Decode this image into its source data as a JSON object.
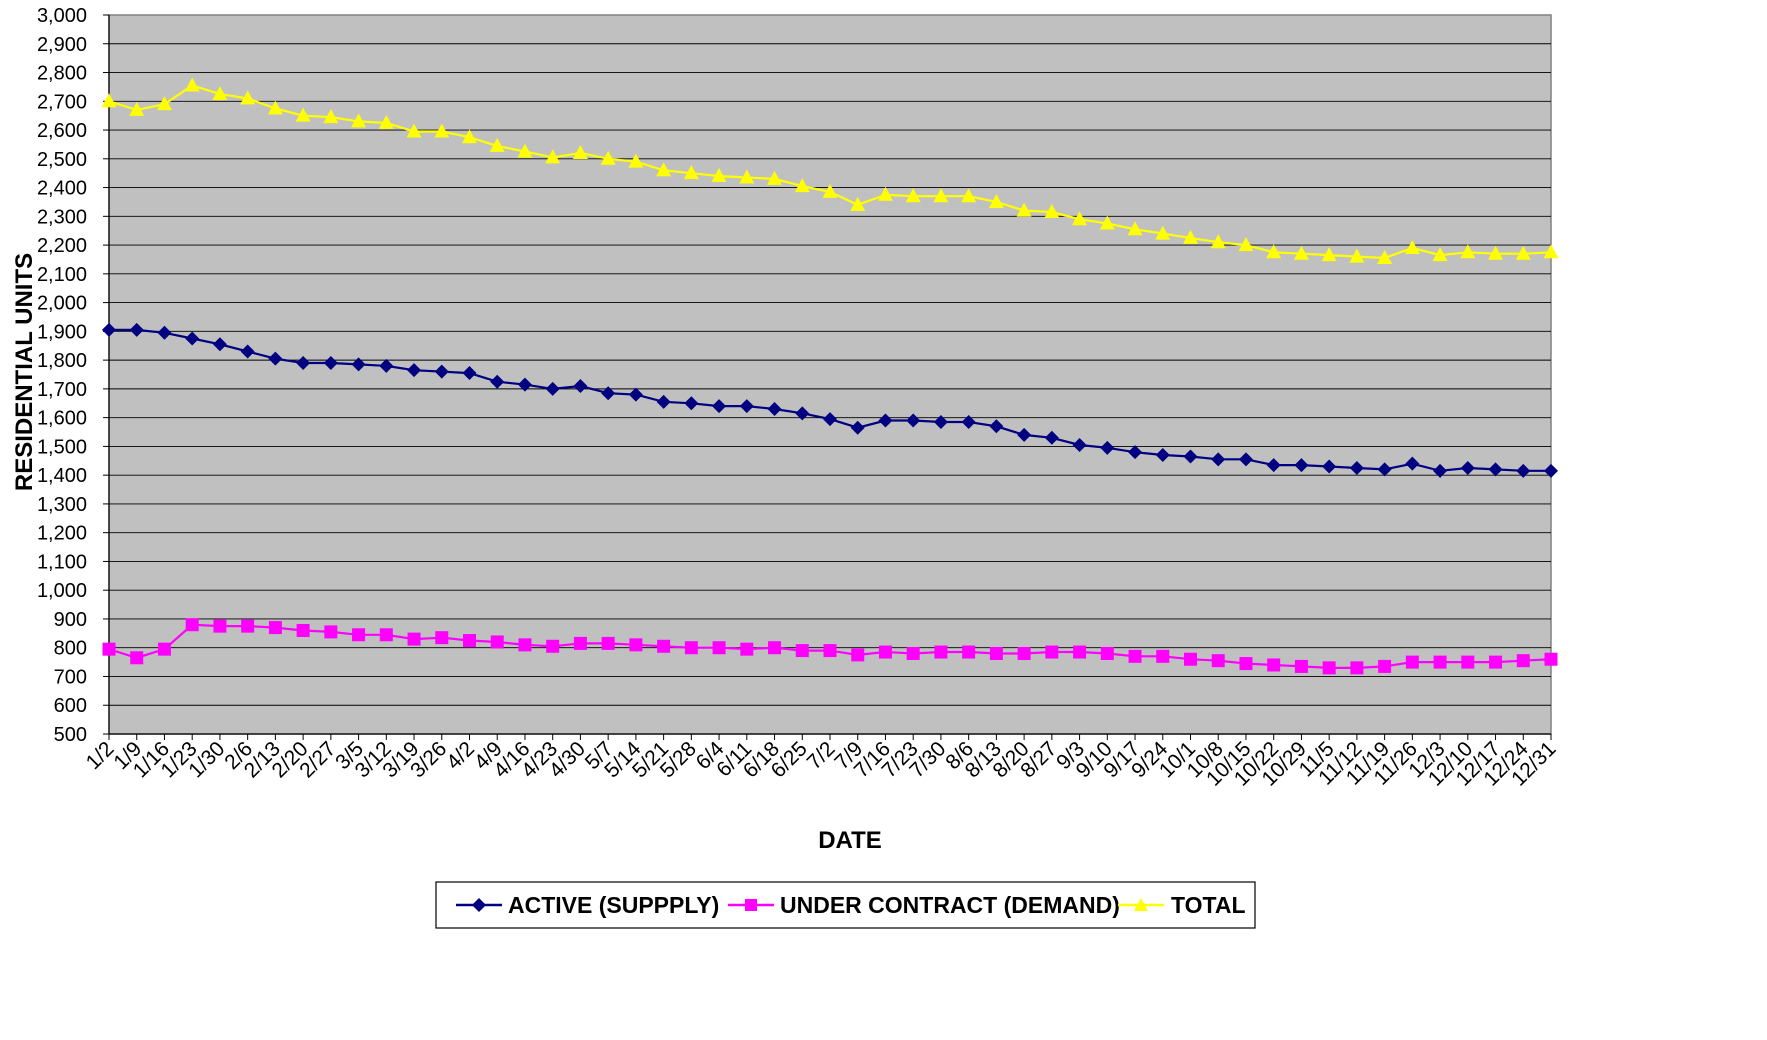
{
  "chart_data": {
    "type": "line",
    "xlabel": "DATE",
    "ylabel": "RESIDENTIAL UNITS",
    "ylim": [
      500,
      3000
    ],
    "ytick_step": 100,
    "grid": "horizontal",
    "legend_position": "bottom",
    "plot_background": "#c0c0c0",
    "categories": [
      "1/2",
      "1/9",
      "1/16",
      "1/23",
      "1/30",
      "2/6",
      "2/13",
      "2/20",
      "2/27",
      "3/5",
      "3/12",
      "3/19",
      "3/26",
      "4/2",
      "4/9",
      "4/16",
      "4/23",
      "4/30",
      "5/7",
      "5/14",
      "5/21",
      "5/28",
      "6/4",
      "6/11",
      "6/18",
      "6/25",
      "7/2",
      "7/9",
      "7/16",
      "7/23",
      "7/30",
      "8/6",
      "8/13",
      "8/20",
      "8/27",
      "9/3",
      "9/10",
      "9/17",
      "9/24",
      "10/1",
      "10/8",
      "10/15",
      "10/22",
      "10/29",
      "11/5",
      "11/12",
      "11/19",
      "11/26",
      "12/3",
      "12/10",
      "12/17",
      "12/24",
      "12/31"
    ],
    "series": [
      {
        "name": "ACTIVE (SUPPPLY)",
        "color": "#000080",
        "marker": "diamond",
        "values": [
          1905,
          1905,
          1895,
          1875,
          1855,
          1830,
          1805,
          1790,
          1790,
          1785,
          1780,
          1765,
          1760,
          1755,
          1725,
          1715,
          1700,
          1710,
          1685,
          1680,
          1655,
          1650,
          1640,
          1640,
          1630,
          1615,
          1595,
          1565,
          1590,
          1590,
          1585,
          1585,
          1570,
          1540,
          1530,
          1505,
          1495,
          1480,
          1470,
          1465,
          1455,
          1455,
          1435,
          1435,
          1430,
          1425,
          1420,
          1440,
          1415,
          1425,
          1420,
          1415,
          1415
        ]
      },
      {
        "name": "UNDER CONTRACT (DEMAND)",
        "color": "#ff00ff",
        "marker": "square",
        "values": [
          795,
          765,
          795,
          880,
          875,
          875,
          870,
          860,
          855,
          845,
          845,
          830,
          835,
          825,
          820,
          810,
          805,
          815,
          815,
          810,
          805,
          800,
          800,
          795,
          800,
          790,
          790,
          775,
          785,
          780,
          785,
          785,
          780,
          780,
          785,
          785,
          780,
          770,
          770,
          760,
          755,
          745,
          740,
          735,
          730,
          730,
          735,
          750,
          750,
          750,
          750,
          755,
          760
        ]
      },
      {
        "name": "TOTAL",
        "color": "#ffff00",
        "marker": "triangle",
        "values": [
          2700,
          2670,
          2690,
          2755,
          2725,
          2710,
          2675,
          2650,
          2645,
          2630,
          2625,
          2595,
          2595,
          2575,
          2545,
          2525,
          2505,
          2520,
          2500,
          2490,
          2460,
          2450,
          2440,
          2435,
          2430,
          2405,
          2385,
          2340,
          2375,
          2370,
          2370,
          2370,
          2350,
          2320,
          2315,
          2290,
          2275,
          2255,
          2240,
          2225,
          2210,
          2200,
          2175,
          2170,
          2165,
          2160,
          2155,
          2190,
          2165,
          2175,
          2170,
          2170,
          2175
        ]
      }
    ]
  }
}
